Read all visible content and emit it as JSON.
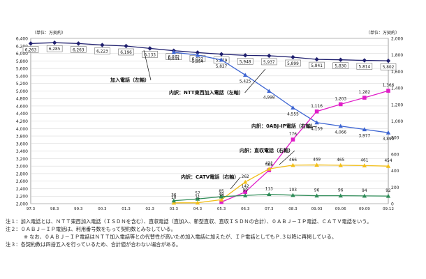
{
  "chart_data": {
    "type": "line",
    "unit_left": "（単位：万契約）",
    "unit_right": "（単位：万契約）",
    "x": [
      "97.3",
      "98.3",
      "99.3",
      "00.3",
      "01.3",
      "02.3",
      "03.3",
      "04.3",
      "05.3",
      "06.3",
      "07.3",
      "08.3",
      "09.03",
      "09.06",
      "09.09",
      "09.12"
    ],
    "y_left": {
      "min": 2000,
      "max": 6400,
      "step": 200
    },
    "y_right": {
      "min": 0,
      "max": 2000,
      "step": 200
    },
    "series": [
      {
        "name": "加入電話（左軸）",
        "axis": "left",
        "color": "#1f1f6e",
        "marker": "diamond",
        "x": [
          "97.3",
          "98.3",
          "99.3",
          "00.3",
          "01.3",
          "02.3",
          "03.3",
          "04.3",
          "05.3",
          "06.3",
          "07.3",
          "08.3",
          "09.03",
          "09.06",
          "09.09",
          "09.12"
        ],
        "values": [
          6263,
          6285,
          6263,
          6223,
          6196,
          6133,
          6072,
          6022,
          5979,
          5948,
          5937,
          5899,
          5841,
          5830,
          5814,
          5802
        ]
      },
      {
        "name": "内訳：NTT東西加入電話（左軸）",
        "axis": "left",
        "color": "#3c64d2",
        "marker": "triangle",
        "x": [
          "03.3",
          "04.3",
          "05.3",
          "06.3",
          "07.3",
          "08.3",
          "09.03",
          "09.06",
          "09.09",
          "09.12"
        ],
        "values": [
          6031,
          5954,
          5827,
          5425,
          4998,
          4555,
          4159,
          4066,
          3977,
          3890
        ]
      },
      {
        "name": "内訳：0ABJ-IP電話（右軸）",
        "axis": "right",
        "color": "#e01ec8",
        "marker": "square",
        "x": [
          "05.3",
          "06.3",
          "07.3",
          "08.3",
          "09.03",
          "09.06",
          "09.09",
          "09.12"
        ],
        "values": [
          19,
          142,
          405,
          776,
          1116,
          1203,
          1282,
          1366
        ]
      },
      {
        "name": "内訳：直収電話（右軸）",
        "axis": "right",
        "color": "#f2be18",
        "marker": "triangle",
        "x": [
          "03.3",
          "04.3",
          "05.3",
          "06.3",
          "07.3",
          "08.3",
          "09.03",
          "09.06",
          "09.09",
          "09.12"
        ],
        "values": [
          10,
          11,
          48,
          262,
          421,
          466,
          469,
          465,
          461,
          454
        ]
      },
      {
        "name": "内訳：CATV電話（右軸）",
        "axis": "right",
        "color": "#2e8b57",
        "marker": "triangle",
        "x": [
          "03.3",
          "04.3",
          "05.3",
          "06.3",
          "07.3",
          "08.3",
          "09.03",
          "09.06",
          "09.09",
          "09.12"
        ],
        "values": [
          36,
          57,
          85,
          99,
          113,
          103,
          96,
          96,
          94,
          92
        ]
      }
    ]
  },
  "notes": {
    "n1": "注１：加入電話とは、ＮＴＴ東西加入電話（ＩＳＤＮを含む）、直収電話（直加入、新型直収、直収ＩＳＤＮの合計）、０ＡＢＪ－ＩＰ電話、ＣＡＴＶ電話をいう。",
    "n2": "注２：０ＡＢＪ－ＩＰ電話は、利用番号数をもって契約数とみなしている。",
    "n2b": "※ なお、０ＡＢＪ－ＩＰ電話はＮＴＴ加入電話等との代替性が高いため加入電話に加えたが、ＩＰ電話としてもＰ.３以降に再掲している。",
    "n3": "注３：各契約数は四捨五入を行っているため、合計値が合わない場合がある。"
  }
}
